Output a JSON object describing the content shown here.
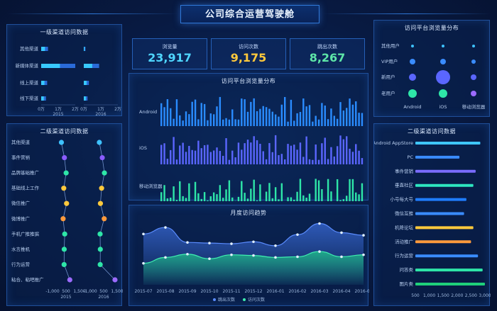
{
  "header": {
    "title": "公司综合运营驾驶舱"
  },
  "kpis": [
    {
      "label": "浏览量",
      "value": "23,917",
      "color": "#4fd6ff"
    },
    {
      "label": "访问次数",
      "value": "9,175",
      "color": "#ffc93c"
    },
    {
      "label": "跳出次数",
      "value": "8,267",
      "color": "#5ee6a8"
    }
  ],
  "panels": {
    "primary": "一级渠道访问数据",
    "secondary": "二级渠道访问数据",
    "platform_left": "访问平台浏览量分布",
    "platform_center": "访问平台浏览量分布",
    "platform_right": "访问平台浏览量分布",
    "monthly": "月度访问趋势",
    "app_channels": "二级渠道访问数据"
  },
  "primary_chart": {
    "categories": [
      "其他渠道",
      "新媒体渠道",
      "线上渠道",
      "线下渠道"
    ],
    "groups": [
      {
        "name": "2015",
        "ticks": [
          "0万",
          "1万",
          "2万"
        ],
        "values": [
          4000,
          20000,
          3500,
          2800
        ]
      },
      {
        "name": "2016",
        "ticks": [
          "0万",
          "1万",
          "2万"
        ],
        "values": [
          1000,
          9000,
          3000,
          2200
        ]
      }
    ]
  },
  "secondary_chart": {
    "categories": [
      "其他渠道",
      "事件营销",
      "品牌基础推广",
      "基础线上工作",
      "微信推广",
      "微博推广",
      "手机广推推据",
      "水言推机",
      "行为运营",
      "粘合、粘吧推广"
    ],
    "groups": [
      {
        "name": "2015",
        "ticks": [
          "-1,000",
          "500",
          "1,500"
        ],
        "values": [
          -180,
          100,
          260,
          40,
          300,
          -20,
          130,
          80,
          70,
          600
        ]
      },
      {
        "name": "2016",
        "ticks": [
          "-1,000",
          "500",
          "1,500"
        ],
        "values": [
          -150,
          120,
          320,
          60,
          -50,
          300,
          -80,
          -60,
          -70,
          1300
        ]
      }
    ]
  },
  "platform_bars": {
    "series": [
      "Android",
      "iOS",
      "移动浏览器"
    ]
  },
  "platform_bubble": {
    "rows": [
      "其他用户",
      "VIP用户",
      "新用户",
      "老用户"
    ],
    "columns": [
      "Android",
      "iOS",
      "移动浏览器"
    ]
  },
  "monthly": {
    "x": [
      "2015-07",
      "2015-08",
      "2015-09",
      "2015-10",
      "2015-11",
      "2015-12",
      "2016-01",
      "2016-02",
      "2016-03",
      "2016-04",
      "2016-05"
    ],
    "legend": [
      "跳出次数",
      "访问次数"
    ],
    "series": [
      {
        "name": "跳出次数",
        "values": [
          7800,
          8800,
          6500,
          6400,
          6300,
          6600,
          6000,
          7700,
          9400,
          8000,
          7600
        ]
      },
      {
        "name": "访问次数",
        "values": [
          3300,
          4200,
          4700,
          4000,
          4600,
          4500,
          4200,
          4300,
          5100,
          4300,
          4600
        ]
      }
    ]
  },
  "app_channels": {
    "categories": [
      "Android AppStore",
      "PC",
      "事件营销",
      "垂直社区",
      "小号每大号",
      "微信互推",
      "机降论坛",
      "活动推广",
      "行为运营",
      "问答类",
      "图片类"
    ],
    "ticks": [
      "500",
      "1,000",
      "1,500",
      "2,000",
      "2,500",
      "3,000"
    ],
    "values": [
      2800,
      1900,
      2600,
      2500,
      2200,
      2100,
      2500,
      2400,
      2700,
      2900,
      3000
    ],
    "colors": [
      "#3fc6ff",
      "#3a8cff",
      "#7a6cff",
      "#2ee6c0",
      "#1f7dff",
      "#3a8cff",
      "#ffc93c",
      "#ff9a3c",
      "#3a8cff",
      "#2ee6a8",
      "#1fd07a"
    ]
  }
}
